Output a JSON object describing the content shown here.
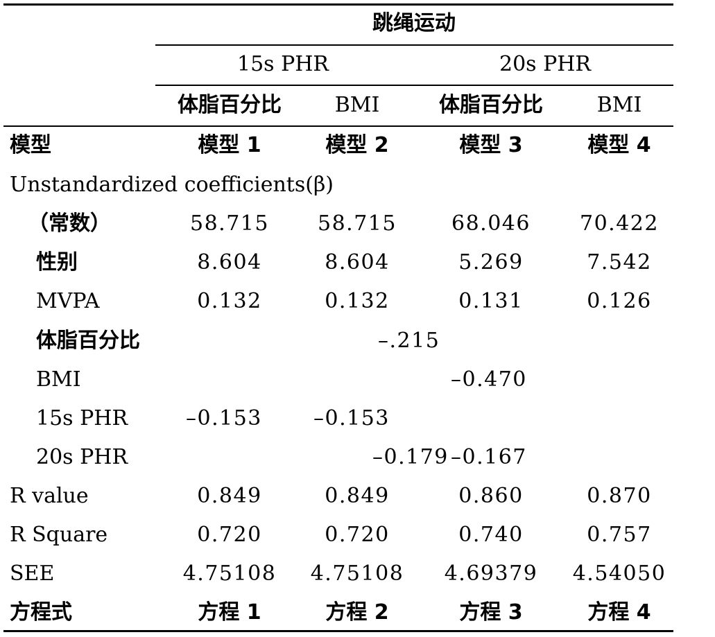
{
  "header": {
    "group_title": "跳绳运动",
    "subgroups": [
      "15s PHR",
      "20s PHR"
    ],
    "columns": [
      "体脂百分比",
      "BMI",
      "体脂百分比",
      "BMI"
    ]
  },
  "rows": [
    {
      "label": "模型",
      "values": [
        "模型 1",
        "模型 2",
        "模型 3",
        "模型 4"
      ]
    },
    {
      "label": "Unstandardized coefficients(β)",
      "values": []
    },
    {
      "label": "（常数）",
      "values": [
        "58.715",
        "58.715",
        "68.046",
        "70.422"
      ]
    },
    {
      "label": "性别",
      "values": [
        "8.604",
        "8.604",
        "5.269",
        "7.542"
      ]
    },
    {
      "label": "MVPA",
      "values": [
        "0.132",
        "0.132",
        "0.131",
        "0.126"
      ]
    },
    {
      "label": "体脂百分比",
      "values": [
        "–.215"
      ]
    },
    {
      "label": "BMI",
      "values": [
        "–0.470"
      ]
    },
    {
      "label": "15s PHR",
      "values": [
        "–0.153",
        "–0.153"
      ]
    },
    {
      "label": "20s PHR",
      "values": [
        "–0.179",
        "–0.167"
      ]
    },
    {
      "label": "R value",
      "values": [
        "0.849",
        "0.849",
        "0.860",
        "0.870"
      ]
    },
    {
      "label": "R Square",
      "values": [
        "0.720",
        "0.720",
        "0.740",
        "0.757"
      ]
    },
    {
      "label": "SEE",
      "values": [
        "4.75108",
        "4.75108",
        "4.69379",
        "4.54050"
      ]
    },
    {
      "label": "方程式",
      "values": [
        "方程 1",
        "方程 2",
        "方程 3",
        "方程 4"
      ]
    }
  ]
}
